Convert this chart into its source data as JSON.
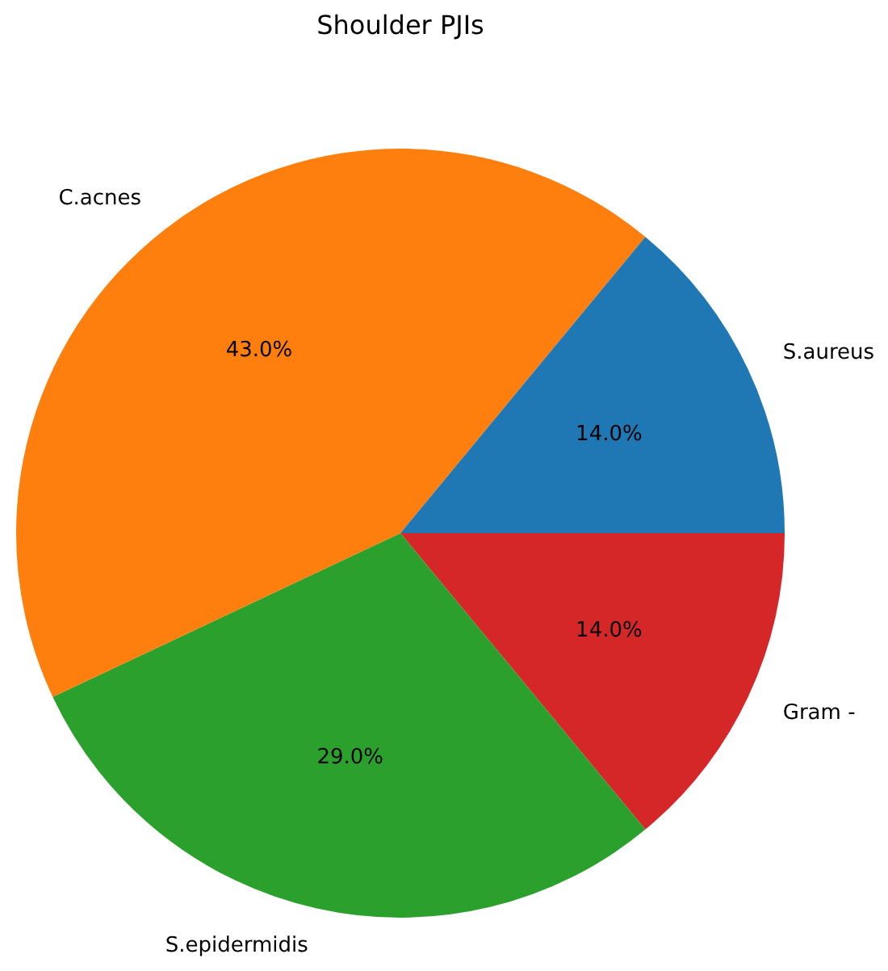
{
  "chart_data": {
    "type": "pie",
    "title": "Shoulder PJIs",
    "categories": [
      "S.aureus",
      "C.acnes",
      "S.epidermidis",
      "Gram -"
    ],
    "values": [
      14,
      43,
      29,
      14
    ],
    "colors": [
      "#1f77b4",
      "#ff7f0e",
      "#2ca02c",
      "#d62728"
    ],
    "value_labels": [
      "14.0%",
      "43.0%",
      "29.0%",
      "14.0%"
    ]
  }
}
